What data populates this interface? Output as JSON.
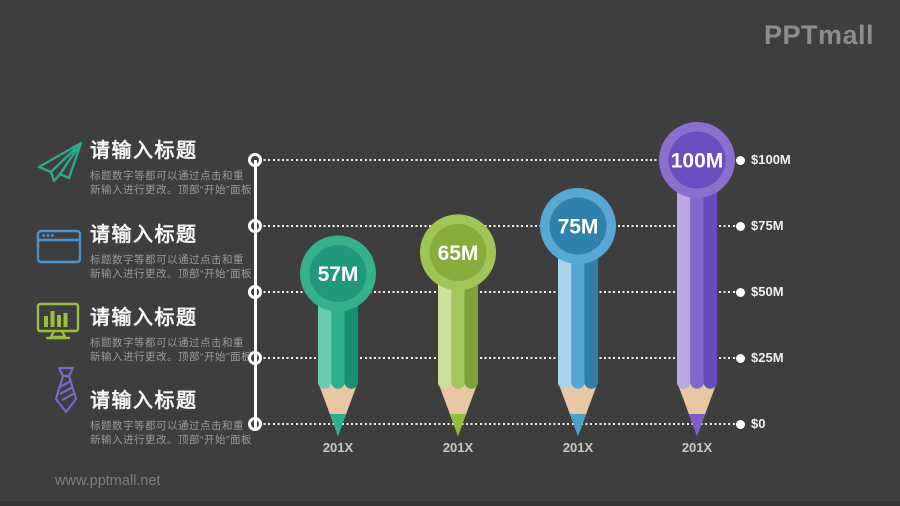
{
  "brand": {
    "logo": "PPTmall",
    "website": "www.pptmall.net"
  },
  "sidebar": {
    "items": [
      {
        "icon": "paper-plane",
        "color": "#2FA98B",
        "title": "请输入标题",
        "desc1": "标题数字等都可以通过点击和重",
        "desc2": "新输入进行更改。顶部“开始”面板"
      },
      {
        "icon": "browser-window",
        "color": "#4C92CC",
        "title": "请输入标题",
        "desc1": "标题数字等都可以通过点击和重",
        "desc2": "新输入进行更改。顶部“开始”面板"
      },
      {
        "icon": "monitor-chart",
        "color": "#9CBE3F",
        "title": "请输入标题",
        "desc1": "标题数字等都可以通过点击和重",
        "desc2": "新输入进行更改。顶部“开始”面板"
      },
      {
        "icon": "necktie",
        "color": "#7B68C8",
        "title": "请输入标题",
        "desc1": "标题数字等都可以通过点击和重",
        "desc2": "新输入进行更改。顶部“开始”面板"
      }
    ]
  },
  "chart_data": {
    "type": "bar",
    "title": "",
    "xlabel": "",
    "ylabel": "",
    "categories": [
      "201X",
      "201X",
      "201X",
      "201X"
    ],
    "values": [
      57,
      65,
      75,
      100
    ],
    "value_labels": [
      "57M",
      "65M",
      "75M",
      "100M"
    ],
    "unit": "M USD",
    "ylim": [
      0,
      100
    ],
    "yticks": [
      100,
      75,
      50,
      25,
      0
    ],
    "ytick_labels": [
      "$100M",
      "$75M",
      "$50M",
      "$25M",
      "$0"
    ],
    "grid": "dotted-horizontal",
    "legend": "none",
    "bar_style": "pencil",
    "wood_color": "#E8C7A5",
    "series_colors": [
      {
        "outer": "#35B18B",
        "inner": "#20997B",
        "light": "#66CDB0",
        "mid": "#2FAE8A",
        "dark": "#178E70",
        "tip": "#2FAE8A"
      },
      {
        "outer": "#A2C558",
        "inner": "#86AD3B",
        "light": "#CBE09F",
        "mid": "#A3C75F",
        "dark": "#7CA139",
        "tip": "#8FBE3F"
      },
      {
        "outer": "#58A8D3",
        "inner": "#2F81AB",
        "light": "#A9D4EC",
        "mid": "#54A6D2",
        "dark": "#2F7FA9",
        "tip": "#4AA0CE"
      },
      {
        "outer": "#8A6FCE",
        "inner": "#6B4EC0",
        "light": "#BAA7E3",
        "mid": "#8166CB",
        "dark": "#6A4BBE",
        "tip": "#7C5FC9"
      }
    ]
  }
}
